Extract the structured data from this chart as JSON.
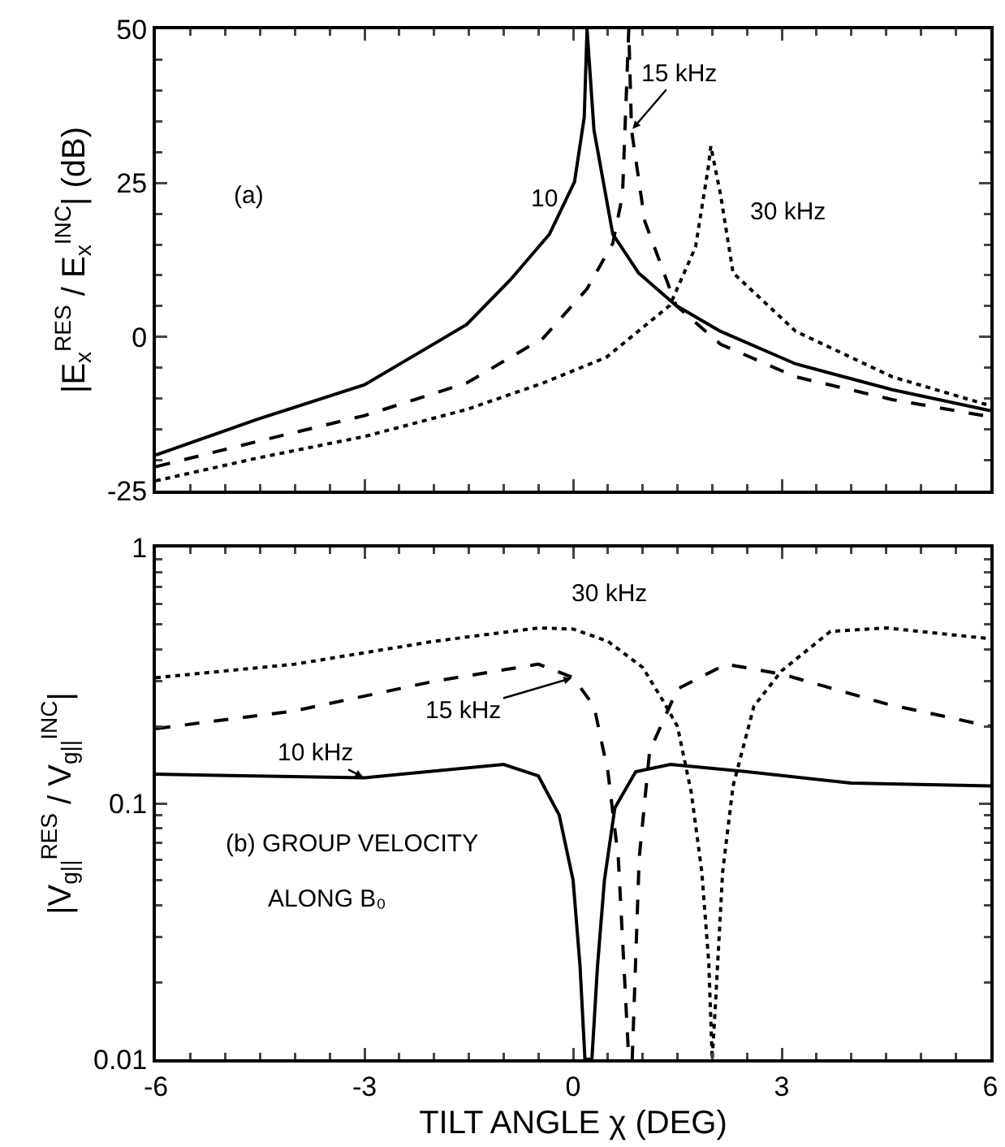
{
  "chart_data": [
    {
      "type": "line",
      "ylabel": "|E$_{x}$$^{RES}$ / E$_{x}$$^{INC}$| (dB)",
      "xlim": [
        -6,
        6
      ],
      "xticks": [
        -6,
        -3,
        0,
        3,
        6
      ],
      "ylim": [
        -25,
        50
      ],
      "yticks": [
        -25,
        0,
        25,
        50
      ],
      "tick_labels": "y",
      "grid": false,
      "legend": false,
      "series": [
        {
          "name": "10",
          "color": "#000000",
          "line_style": "solid",
          "x": [
            -6,
            -4.54,
            -3,
            -1.53,
            -0.9,
            -0.34,
            0.02,
            0.16,
            0.2,
            0.3,
            0.57,
            0.94,
            1.48,
            2.12,
            3.2,
            4.59,
            6
          ],
          "values": [
            -19.2,
            -13.4,
            -7.8,
            2,
            9.3,
            16.7,
            25.2,
            35.7,
            50,
            33.6,
            16.7,
            10.4,
            5.1,
            0.9,
            -4.4,
            -8.6,
            -12
          ]
        },
        {
          "name": "15 kHz",
          "color": "#000000",
          "line_style": "dashed",
          "x": [
            -6,
            -4.54,
            -3,
            -1.53,
            -0.43,
            0.2,
            0.57,
            0.71,
            0.8,
            0.84,
            1.03,
            1.48,
            2.12,
            3.2,
            4.59,
            6
          ],
          "values": [
            -21.1,
            -17,
            -12.8,
            -7.5,
            -0.2,
            7.8,
            15.2,
            23,
            50,
            33.6,
            18.8,
            5.1,
            -1.2,
            -6.5,
            -10.2,
            -13
          ]
        },
        {
          "name": "30 kHz",
          "color": "#000000",
          "line_style": "dotted",
          "x": [
            -6,
            -4.54,
            -3,
            -1.53,
            -0.43,
            0.48,
            1.39,
            1.76,
            1.94,
            1.98,
            2.12,
            2.3,
            3.2,
            4.59,
            6
          ],
          "values": [
            -23.4,
            -19.7,
            -16.2,
            -11.8,
            -7.5,
            -3.3,
            5.1,
            14.6,
            27.3,
            31,
            23.1,
            10.4,
            0.9,
            -6.5,
            -11.2
          ]
        }
      ],
      "annotations": [
        "(a)"
      ]
    },
    {
      "type": "line",
      "xlabel": "TILT ANGLE χ (DEG)",
      "ylabel": "|V$_{g||}$$^{RES}$ / V$_{g||}$$^{INC}$|",
      "log": "y",
      "xlim": [
        -6,
        6
      ],
      "xticks": [
        -6,
        -3,
        0,
        3,
        6
      ],
      "ylim": [
        0.01,
        1
      ],
      "yticks": [
        0.01,
        0.1,
        1
      ],
      "grid": false,
      "legend": false,
      "series": [
        {
          "name": "10 kHz",
          "color": "#000000",
          "line_style": "solid",
          "x": [
            -6,
            -3,
            -1,
            -0.5,
            -0.2,
            0,
            0.1,
            0.17,
            0.27,
            0.35,
            0.45,
            0.6,
            0.9,
            1.4,
            2.5,
            4,
            6
          ],
          "values": [
            0.13,
            0.126,
            0.142,
            0.128,
            0.09,
            0.05,
            0.023,
            0.01,
            0.01,
            0.023,
            0.05,
            0.096,
            0.133,
            0.142,
            0.133,
            0.12,
            0.117
          ]
        },
        {
          "name": "15 kHz",
          "color": "#000000",
          "line_style": "dashed",
          "x": [
            -6,
            -4,
            -2,
            -0.5,
            0,
            0.3,
            0.5,
            0.65,
            0.8,
            0.85,
            0.95,
            1.1,
            1.5,
            2.2,
            3,
            4.5,
            6
          ],
          "values": [
            0.196,
            0.23,
            0.3,
            0.35,
            0.31,
            0.24,
            0.133,
            0.061,
            0.01,
            0.01,
            0.061,
            0.16,
            0.28,
            0.35,
            0.32,
            0.245,
            0.2
          ]
        },
        {
          "name": "30 kHz",
          "color": "#000000",
          "line_style": "dotted",
          "x": [
            -6,
            -4,
            -2,
            -0.5,
            0,
            0.5,
            1,
            1.3,
            1.5,
            1.7,
            1.85,
            1.95,
            2,
            2.05,
            2.15,
            2.3,
            2.6,
            3,
            3.7,
            4.5,
            6
          ],
          "values": [
            0.31,
            0.35,
            0.43,
            0.485,
            0.48,
            0.43,
            0.34,
            0.25,
            0.2,
            0.11,
            0.054,
            0.024,
            0.01,
            0.017,
            0.054,
            0.117,
            0.24,
            0.33,
            0.47,
            0.485,
            0.44
          ]
        }
      ],
      "annotations": [
        "(b) GROUP VELOCITY",
        "ALONG B₀"
      ]
    }
  ]
}
